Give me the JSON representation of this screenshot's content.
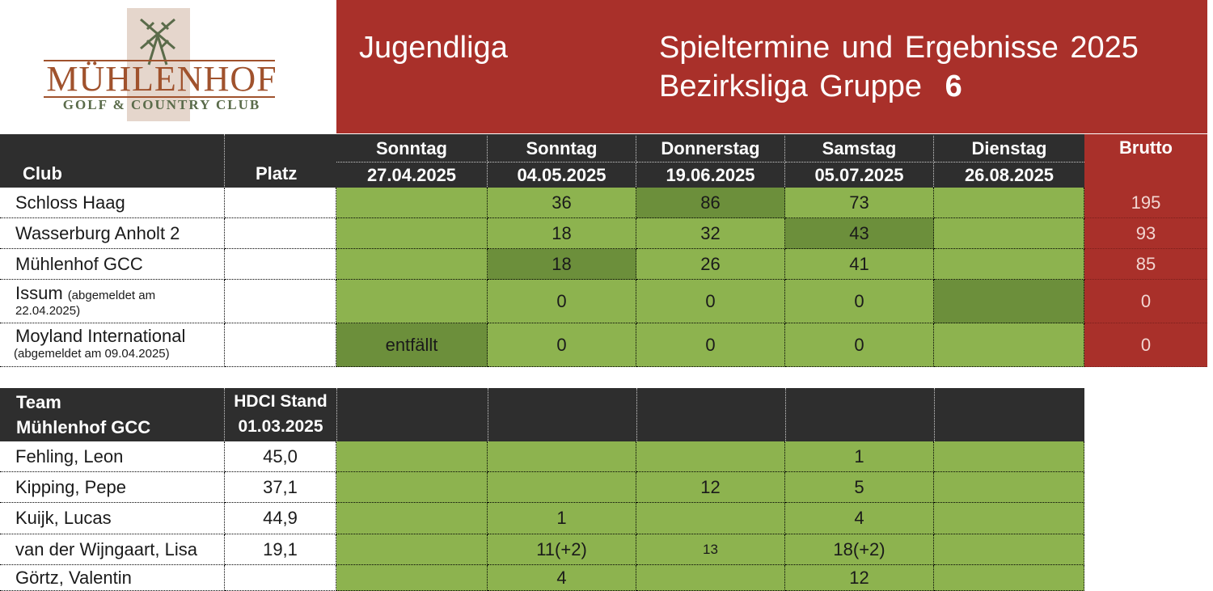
{
  "logo": {
    "name": "MÜHLENHOF",
    "subtitle": "GOLF & COUNTRY CLUB"
  },
  "banner": {
    "league": "Jugendliga",
    "title_line1": "Spieltermine und Ergebnisse 2025",
    "title_line2_prefix": "Bezirksliga Gruppe",
    "group_number": "6"
  },
  "results": {
    "club_header": "Club",
    "platz_header": "Platz",
    "brutto_header": "Brutto",
    "days": [
      {
        "weekday": "Sonntag",
        "date": "27.04.2025"
      },
      {
        "weekday": "Sonntag",
        "date": "04.05.2025"
      },
      {
        "weekday": "Donnerstag",
        "date": "19.06.2025"
      },
      {
        "weekday": "Samstag",
        "date": "05.07.2025"
      },
      {
        "weekday": "Dienstag",
        "date": "26.08.2025"
      }
    ],
    "rows": [
      {
        "club": "Schloss Haag",
        "note": "",
        "platz": "",
        "scores": [
          "",
          "36",
          "86",
          "73",
          ""
        ],
        "brutto": "195"
      },
      {
        "club": "Wasserburg Anholt 2",
        "note": "",
        "platz": "",
        "scores": [
          "",
          "18",
          "32",
          "43",
          ""
        ],
        "brutto": "93"
      },
      {
        "club": "Mühlenhof GCC",
        "note": "",
        "platz": "",
        "scores": [
          "",
          "18",
          "26",
          "41",
          ""
        ],
        "brutto": "85"
      },
      {
        "club": "Issum",
        "note": "(abgemeldet am",
        "note2": "22.04.2025)",
        "platz": "",
        "scores": [
          "",
          "0",
          "0",
          "0",
          ""
        ],
        "brutto": "0"
      },
      {
        "club": "Moyland International",
        "note": "(abgemeldet am 09.04.2025)",
        "platz": "",
        "scores": [
          "entfällt",
          "0",
          "0",
          "0",
          ""
        ],
        "brutto": "0"
      }
    ]
  },
  "team": {
    "header_line1": "Team",
    "header_line2": "Mühlenhof GCC",
    "hdci_line1": "HDCI Stand",
    "hdci_line2": "01.03.2025",
    "players": [
      {
        "name": "Fehling, Leon",
        "hdci": "45,0",
        "scores": [
          "",
          "",
          "",
          "1",
          ""
        ]
      },
      {
        "name": "Kipping, Pepe",
        "hdci": "37,1",
        "scores": [
          "",
          "",
          "12",
          "5",
          ""
        ]
      },
      {
        "name": "Kuijk, Lucas",
        "hdci": "44,9",
        "scores": [
          "",
          "1",
          "",
          "4",
          ""
        ]
      },
      {
        "name": "van der Wijngaart, Lisa",
        "hdci": "19,1",
        "scores": [
          "",
          "11(+2)",
          "13",
          "18(+2)",
          ""
        ]
      },
      {
        "name": "Görtz, Valentin",
        "hdci": "",
        "scores": [
          "",
          "4",
          "",
          "12",
          ""
        ]
      }
    ]
  }
}
